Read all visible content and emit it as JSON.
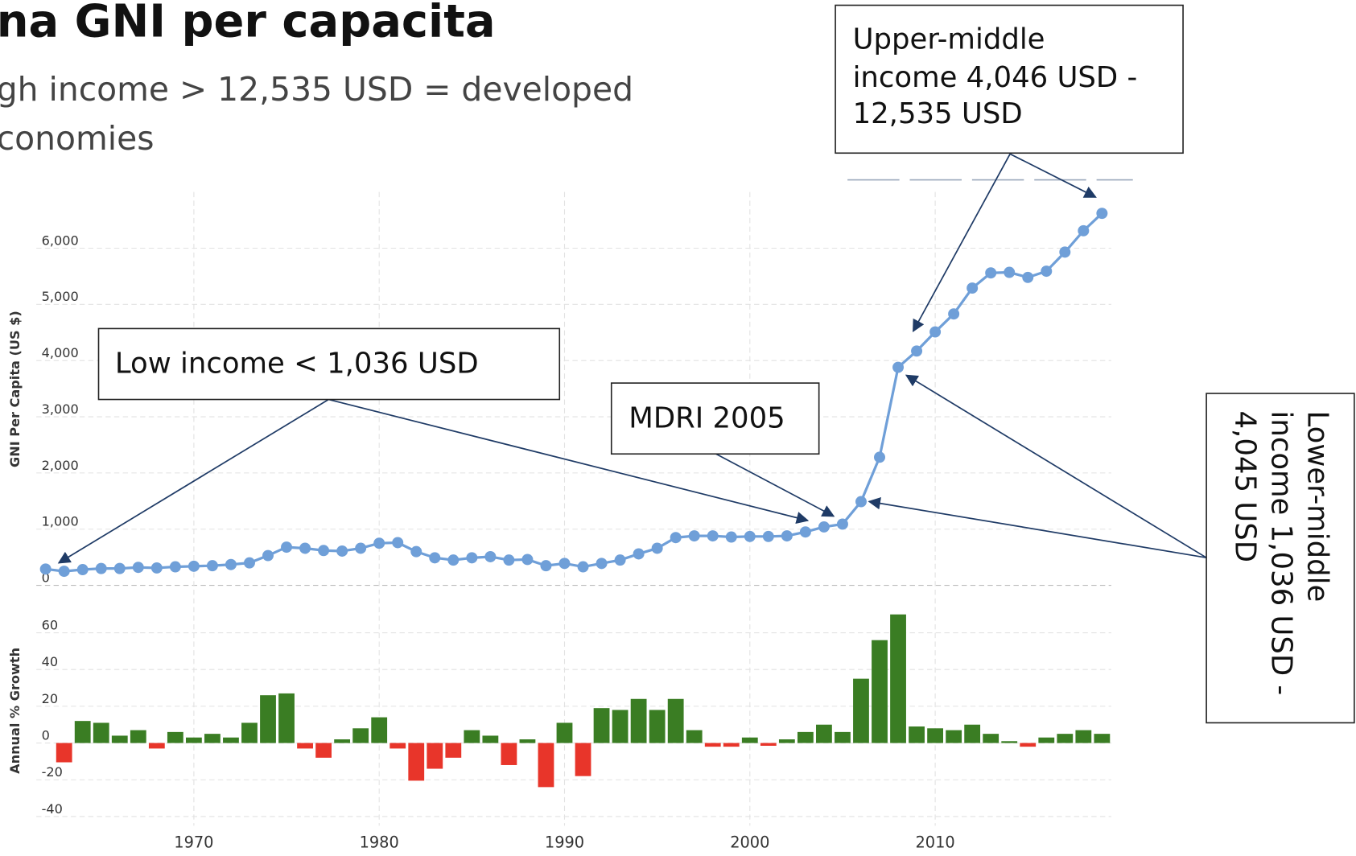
{
  "chart_data": [
    {
      "type": "line",
      "title": "na GNI per capacita",
      "subtitle": [
        "gh income > 12,535 USD = developed",
        "conomies"
      ],
      "y_label": "GNI Per Capita (US $)",
      "x": [
        1962,
        1963,
        1964,
        1965,
        1966,
        1967,
        1968,
        1969,
        1970,
        1971,
        1972,
        1973,
        1974,
        1975,
        1976,
        1977,
        1978,
        1979,
        1980,
        1981,
        1982,
        1983,
        1984,
        1985,
        1986,
        1987,
        1988,
        1989,
        1990,
        1991,
        1992,
        1993,
        1994,
        1995,
        1996,
        1997,
        1998,
        1999,
        2000,
        2001,
        2002,
        2003,
        2004,
        2005,
        2006,
        2007,
        2008,
        2009,
        2010,
        2011,
        2012,
        2013,
        2014,
        2015,
        2016,
        2017,
        2018,
        2019
      ],
      "values": [
        290,
        250,
        280,
        300,
        300,
        320,
        310,
        330,
        340,
        350,
        370,
        400,
        530,
        680,
        660,
        620,
        610,
        660,
        750,
        760,
        600,
        490,
        450,
        490,
        510,
        450,
        460,
        350,
        390,
        330,
        390,
        450,
        560,
        660,
        850,
        880,
        880,
        860,
        870,
        870,
        880,
        950,
        1040,
        1090,
        1490,
        2280,
        3880,
        4170,
        4510,
        4830,
        5290,
        5560,
        5570,
        5480,
        5590,
        5930,
        6310,
        6620
      ],
      "color": "#6f9fd8",
      "xlim": [
        1961.5,
        2019.5
      ],
      "ylim": [
        0,
        7000
      ],
      "yticks": [
        0,
        {
          "value": 1000,
          "label": "1,000"
        },
        {
          "value": 2000,
          "label": "2,000"
        },
        {
          "value": 3000,
          "label": "3,000"
        },
        {
          "value": 4000,
          "label": "4,000"
        },
        {
          "value": 5000,
          "label": "5,000"
        },
        {
          "value": 6000,
          "label": "6,000"
        }
      ],
      "grid": true,
      "annotations": [
        {
          "lines": [
            "Low income < 1,036 USD"
          ]
        },
        {
          "lines": [
            "MDRI 2005"
          ]
        },
        {
          "lines": [
            "Upper-middle",
            "income 4,046 USD -",
            "12,535 USD"
          ]
        },
        {
          "lines": [
            "Lower-middle",
            "income 1,036 USD -",
            "4,045 USD"
          ]
        }
      ]
    },
    {
      "type": "bar",
      "y_label": "Annual % Growth",
      "x": [
        1963,
        1964,
        1965,
        1966,
        1967,
        1968,
        1969,
        1970,
        1971,
        1972,
        1973,
        1974,
        1975,
        1976,
        1977,
        1978,
        1979,
        1980,
        1981,
        1982,
        1983,
        1984,
        1985,
        1986,
        1987,
        1988,
        1989,
        1990,
        1991,
        1992,
        1993,
        1994,
        1995,
        1996,
        1997,
        1998,
        1999,
        2000,
        2001,
        2002,
        2003,
        2004,
        2005,
        2006,
        2007,
        2008,
        2009,
        2010,
        2011,
        2012,
        2013,
        2014,
        2015,
        2016,
        2017,
        2018,
        2019
      ],
      "values": [
        -10.5,
        12,
        11,
        4,
        7,
        -3,
        6,
        3,
        5,
        3,
        11,
        26,
        27,
        -3,
        -8,
        2,
        8,
        14,
        -3,
        -20.5,
        -14,
        -8,
        7,
        4,
        -12,
        2,
        -24,
        11,
        -18,
        19,
        18,
        24,
        18,
        24,
        7,
        -2,
        -2,
        3,
        -1.5,
        2,
        6,
        10,
        6,
        35,
        56,
        70,
        9,
        8,
        7,
        10,
        5,
        1,
        -2,
        3,
        5,
        7,
        5
      ],
      "color": "#3a7d23",
      "negative_color": "#e8352a",
      "xlim": [
        1961.5,
        2019.5
      ],
      "ylim": [
        -45,
        75
      ],
      "xticks": [
        1970,
        1980,
        1990,
        2000,
        2010
      ],
      "yticks": [
        -40,
        -20,
        0,
        20,
        40,
        60
      ],
      "grid": true
    }
  ]
}
